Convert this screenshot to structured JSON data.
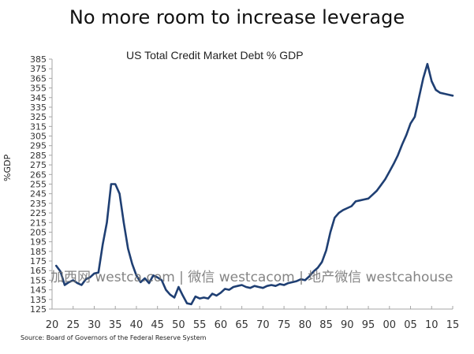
{
  "headline": "No more room to increase leverage",
  "source": "Source: Board of Governors of the Federal Reserve System",
  "watermark": "加西网 westca.com | 微信 westcacom | 地产微信 westcahouse",
  "chart_data": {
    "type": "line",
    "title": "US Total Credit Market Debt % GDP",
    "xlabel": "",
    "ylabel": "%GDP",
    "xlim": [
      1920,
      2015
    ],
    "ylim": [
      125,
      385
    ],
    "y_ticks": [
      125,
      135,
      145,
      155,
      165,
      175,
      185,
      195,
      205,
      215,
      225,
      235,
      245,
      255,
      265,
      275,
      285,
      295,
      305,
      315,
      325,
      335,
      345,
      355,
      365,
      375,
      385
    ],
    "x_ticks": [
      1920,
      1925,
      1930,
      1935,
      1940,
      1945,
      1950,
      1955,
      1960,
      1965,
      1970,
      1975,
      1980,
      1985,
      1990,
      1995,
      2000,
      2005,
      2010,
      2015
    ],
    "x_tick_labels": [
      "20",
      "25",
      "30",
      "35",
      "40",
      "45",
      "50",
      "55",
      "60",
      "65",
      "70",
      "75",
      "80",
      "85",
      "90",
      "95",
      "00",
      "05",
      "10",
      "15"
    ],
    "grid": false,
    "legend": "none",
    "line_color": "#1f3f73",
    "series": [
      {
        "name": "US Total Credit Market Debt % GDP",
        "x": [
          1921,
          1922,
          1923,
          1924,
          1925,
          1926,
          1927,
          1928,
          1929,
          1930,
          1931,
          1932,
          1933,
          1934,
          1935,
          1936,
          1937,
          1938,
          1939,
          1940,
          1941,
          1942,
          1943,
          1944,
          1945,
          1946,
          1947,
          1948,
          1949,
          1950,
          1951,
          1952,
          1953,
          1954,
          1955,
          1956,
          1957,
          1958,
          1959,
          1960,
          1961,
          1962,
          1963,
          1964,
          1965,
          1966,
          1967,
          1968,
          1969,
          1970,
          1971,
          1972,
          1973,
          1974,
          1975,
          1976,
          1977,
          1978,
          1979,
          1980,
          1981,
          1982,
          1983,
          1984,
          1985,
          1986,
          1987,
          1988,
          1989,
          1990,
          1991,
          1992,
          1993,
          1994,
          1995,
          1996,
          1997,
          1998,
          1999,
          2000,
          2001,
          2002,
          2003,
          2004,
          2005,
          2006,
          2007,
          2008,
          2009,
          2010,
          2011,
          2012,
          2013,
          2014,
          2015
        ],
        "values": [
          170,
          164,
          150,
          153,
          155,
          152,
          150,
          156,
          158,
          162,
          163,
          192,
          215,
          255,
          255,
          245,
          215,
          188,
          172,
          160,
          153,
          157,
          152,
          160,
          158,
          155,
          145,
          140,
          137,
          148,
          139,
          131,
          130,
          138,
          136,
          137,
          136,
          141,
          139,
          142,
          146,
          145,
          148,
          149,
          150,
          148,
          147,
          149,
          148,
          147,
          149,
          150,
          149,
          151,
          150,
          152,
          153,
          154,
          156,
          155,
          159,
          164,
          168,
          174,
          186,
          205,
          220,
          225,
          228,
          230,
          232,
          237,
          238,
          239,
          240,
          244,
          248,
          254,
          260,
          268,
          276,
          285,
          296,
          306,
          318,
          325,
          345,
          365,
          380,
          362,
          353,
          350,
          349,
          348,
          347
        ]
      }
    ]
  }
}
